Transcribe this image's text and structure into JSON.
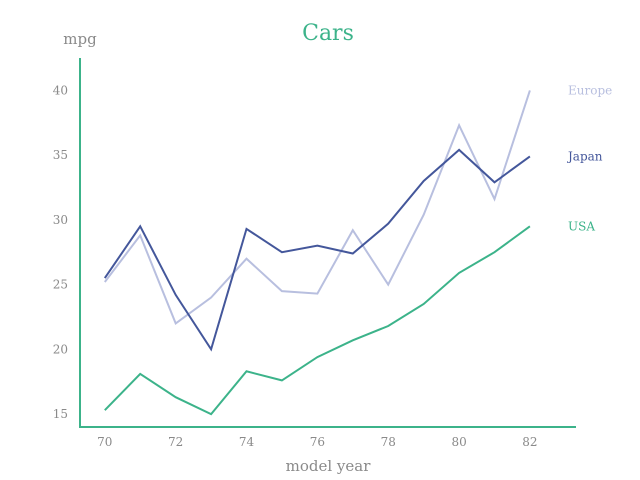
{
  "chart_data": {
    "type": "line",
    "title": "Cars",
    "xlabel": "model year",
    "ylabel": "mpg",
    "xlim": [
      69.3,
      83.3
    ],
    "ylim": [
      14.0,
      42.5
    ],
    "xticks": [
      70,
      72,
      74,
      76,
      78,
      80,
      82
    ],
    "yticks": [
      15,
      20,
      25,
      30,
      35,
      40
    ],
    "x": [
      70,
      71,
      72,
      73,
      74,
      75,
      76,
      77,
      78,
      79,
      80,
      81,
      82
    ],
    "grid": false,
    "legend": "inline-right",
    "colors": {
      "axis": "#3cb38a",
      "title": "#3cb38a"
    },
    "series": [
      {
        "name": "Europe",
        "color": "#b8bfdf",
        "values": [
          25.2,
          28.8,
          22.0,
          24.0,
          27.0,
          24.5,
          24.3,
          29.2,
          25.0,
          30.4,
          37.3,
          31.6,
          40.0
        ]
      },
      {
        "name": "Japan",
        "color": "#44579b",
        "values": [
          25.5,
          29.5,
          24.2,
          20.0,
          29.3,
          27.5,
          28.0,
          27.4,
          29.7,
          33.0,
          35.4,
          32.9,
          34.9
        ]
      },
      {
        "name": "USA",
        "color": "#3cb38a",
        "values": [
          15.3,
          18.1,
          16.3,
          15.0,
          18.3,
          17.6,
          19.4,
          20.7,
          21.8,
          23.5,
          25.9,
          27.5,
          29.5
        ]
      }
    ]
  }
}
